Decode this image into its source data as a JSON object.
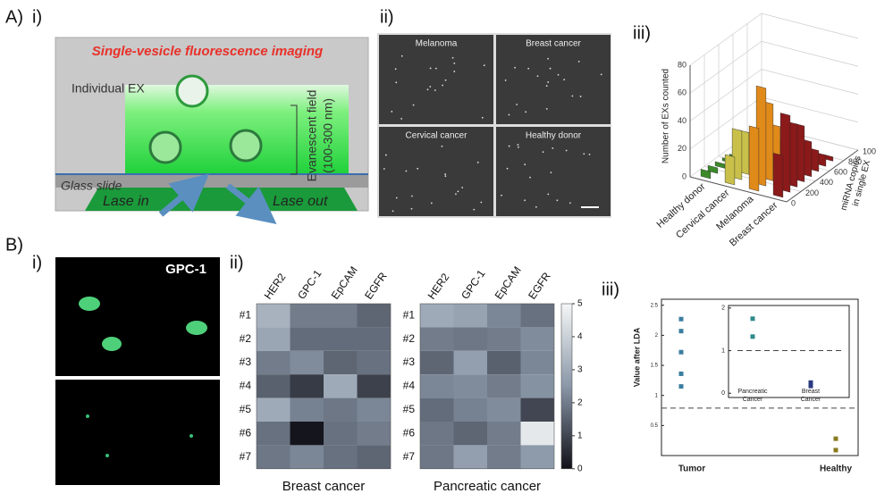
{
  "panel_labels": [
    "A)",
    "i)",
    "ii)",
    "iii)",
    "B)",
    "i)",
    "ii)",
    "iii)"
  ],
  "schematic": {
    "title": "Single-vesicle fluorescence imaging",
    "exosome_label": "Individual EX",
    "field_label": "Evanescent field",
    "field_range": "(100-300 nm)",
    "slide_label": "Glass slide",
    "laser_in": "Lase in",
    "laser_out": "Lase out"
  },
  "images": {
    "labels": [
      "Melanoma",
      "Breast cancer",
      "Cervical cancer",
      "Healthy donor"
    ]
  },
  "marker_label": "GPC-1",
  "chart_data": [
    {
      "type": "bar3d",
      "ylabel": "Number of EXs counted",
      "depth_label": [
        "miRNA copies",
        "in single EX"
      ],
      "categories": [
        "Healthy donor",
        "Cervical cancer",
        "Melanoma",
        "Breast cancer"
      ],
      "ylim": [
        0,
        80
      ],
      "yticks": [
        0,
        20,
        40,
        60,
        80
      ],
      "depth_lim": [
        0,
        1000
      ],
      "depth_ticks": [
        0,
        200,
        400,
        600,
        800,
        1000
      ],
      "x": [
        50,
        150,
        250,
        350,
        450,
        550,
        650,
        750
      ],
      "series": [
        {
          "color": "#3c8a2a",
          "values": [
            5,
            4,
            3,
            2,
            1,
            1,
            0,
            0
          ]
        },
        {
          "color": "#c8c04a",
          "values": [
            20,
            35,
            30,
            25,
            15,
            10,
            5,
            2
          ]
        },
        {
          "color": "#e08a1a",
          "values": [
            45,
            70,
            55,
            35,
            20,
            10,
            5,
            2
          ]
        },
        {
          "color": "#8b1a1a",
          "values": [
            30,
            55,
            45,
            40,
            25,
            15,
            8,
            3
          ]
        }
      ]
    },
    {
      "type": "heatmap",
      "columns": [
        "HER2",
        "GPC-1",
        "EpCAM",
        "EGFR"
      ],
      "rows": [
        "#1",
        "#2",
        "#3",
        "#4",
        "#5",
        "#6",
        "#7"
      ],
      "maps": [
        {
          "title": "Breast cancer",
          "values": [
            [
              3.2,
              2.0,
              2.0,
              1.6
            ],
            [
              2.9,
              1.7,
              1.7,
              1.7
            ],
            [
              2.0,
              2.3,
              1.6,
              1.8
            ],
            [
              1.5,
              0.8,
              3.0,
              0.9
            ],
            [
              3.0,
              2.1,
              1.9,
              2.2
            ],
            [
              1.8,
              0.1,
              1.8,
              2.0
            ],
            [
              1.9,
              2.2,
              1.8,
              1.6
            ]
          ]
        },
        {
          "title": "Pancreatic cancer",
          "values": [
            [
              3.0,
              2.8,
              2.2,
              1.8
            ],
            [
              2.0,
              1.9,
              2.0,
              2.3
            ],
            [
              1.6,
              2.7,
              1.5,
              2.2
            ],
            [
              2.2,
              2.3,
              2.0,
              2.4
            ],
            [
              1.7,
              2.1,
              2.3,
              1.0
            ],
            [
              1.9,
              1.6,
              2.0,
              4.6
            ],
            [
              1.9,
              2.7,
              2.0,
              2.6
            ]
          ]
        }
      ],
      "clim": [
        0,
        5
      ],
      "cticks": [
        0,
        1,
        2,
        3,
        4,
        5
      ]
    },
    {
      "type": "scatter",
      "ylabel": "Value after LDA",
      "categories": [
        "Tumor",
        "Healthy"
      ],
      "ylim": [
        0,
        2.6
      ],
      "yticks": [
        0.5,
        1,
        1.5,
        2,
        2.5
      ],
      "threshold": 0.79,
      "series": [
        {
          "color": "#3b7ea1",
          "values": [
            2.27,
            2.07,
            1.72,
            1.36,
            1.15
          ]
        },
        {
          "color": "#8a7a1e",
          "values": [
            0.28,
            0.09
          ]
        }
      ],
      "inset": {
        "categories": [
          [
            "Pancreatic",
            "Cancer"
          ],
          [
            "Breast",
            "Cancer"
          ]
        ],
        "ylim": [
          -0.1,
          2.06
        ],
        "yticks": [
          0,
          1,
          2
        ],
        "threshold": 1,
        "series": [
          {
            "color": "#2f8a8a",
            "values": [
              1.75,
              1.33
            ]
          },
          {
            "color": "#2a3a80",
            "values": [
              0.25,
              0.17
            ]
          }
        ]
      }
    }
  ]
}
